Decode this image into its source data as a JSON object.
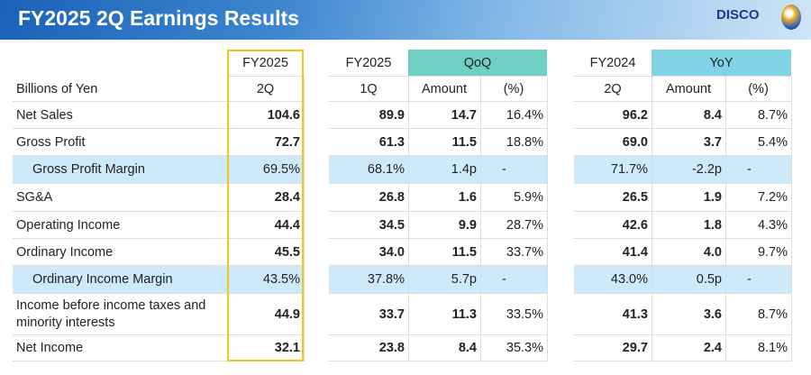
{
  "header": {
    "title": "FY2025 2Q Earnings Results",
    "logo": "DISCO"
  },
  "columns": {
    "unit": "Billions of Yen",
    "cur": [
      "FY2025",
      "2Q"
    ],
    "prev_q": [
      "FY2025",
      "1Q"
    ],
    "qoq": "QoQ",
    "prev_y": [
      "FY2024",
      "2Q"
    ],
    "yoy": "YoY",
    "amount": "Amount",
    "pct": "(%)"
  },
  "rows": [
    {
      "label": "Net Sales",
      "v": [
        "104.6",
        "89.9",
        "14.7",
        "16.4%",
        "96.2",
        "8.4",
        "8.7%"
      ],
      "hl": false
    },
    {
      "label": "Gross Profit",
      "v": [
        "72.7",
        "61.3",
        "11.5",
        "18.8%",
        "69.0",
        "3.7",
        "5.4%"
      ],
      "hl": false
    },
    {
      "label": "Gross Profit Margin",
      "v": [
        "69.5%",
        "68.1%",
        "1.4p",
        "-",
        "71.7%",
        "-2.2p",
        "-"
      ],
      "hl": true
    },
    {
      "label": "SG&A",
      "v": [
        "28.4",
        "26.8",
        "1.6",
        "5.9%",
        "26.5",
        "1.9",
        "7.2%"
      ],
      "hl": false
    },
    {
      "label": "Operating Income",
      "v": [
        "44.4",
        "34.5",
        "9.9",
        "28.7%",
        "42.6",
        "1.8",
        "4.3%"
      ],
      "hl": false
    },
    {
      "label": "Ordinary Income",
      "v": [
        "45.5",
        "34.0",
        "11.5",
        "33.7%",
        "41.4",
        "4.0",
        "9.7%"
      ],
      "hl": false
    },
    {
      "label": "Ordinary Income Margin",
      "v": [
        "43.5%",
        "37.8%",
        "5.7p",
        "-",
        "43.0%",
        "0.5p",
        "-"
      ],
      "hl": true
    },
    {
      "label": "Income before income taxes and minority interests",
      "v": [
        "44.9",
        "33.7",
        "11.3",
        "33.5%",
        "41.3",
        "3.6",
        "8.7%"
      ],
      "hl": false
    },
    {
      "label": "Net Income",
      "v": [
        "32.1",
        "23.8",
        "8.4",
        "35.3%",
        "29.7",
        "2.4",
        "8.1%"
      ],
      "hl": false
    }
  ],
  "colors": {
    "highlight": "#cdeafa",
    "qoq": "#6fcfc3",
    "yoy": "#80d4e6",
    "border": "#f5c518"
  }
}
